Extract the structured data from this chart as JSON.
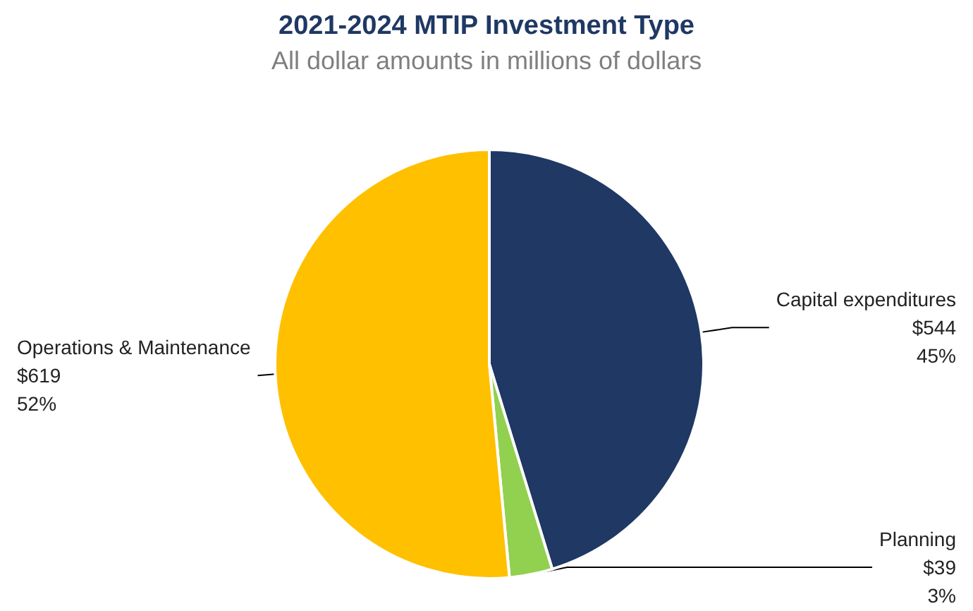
{
  "chart_data": {
    "type": "pie",
    "title": "2021-2024 MTIP Investment Type",
    "subtitle": "All dollar amounts in millions of dollars",
    "categories": [
      "Capital expenditures",
      "Planning",
      "Operations & Maintenance"
    ],
    "values": [
      544,
      39,
      619
    ],
    "colors": [
      "#1f3864",
      "#92d050",
      "#ffc000"
    ],
    "value_labels": [
      "$544\n45%",
      "$39\n3%",
      "$619\n52%"
    ],
    "legend": false
  }
}
